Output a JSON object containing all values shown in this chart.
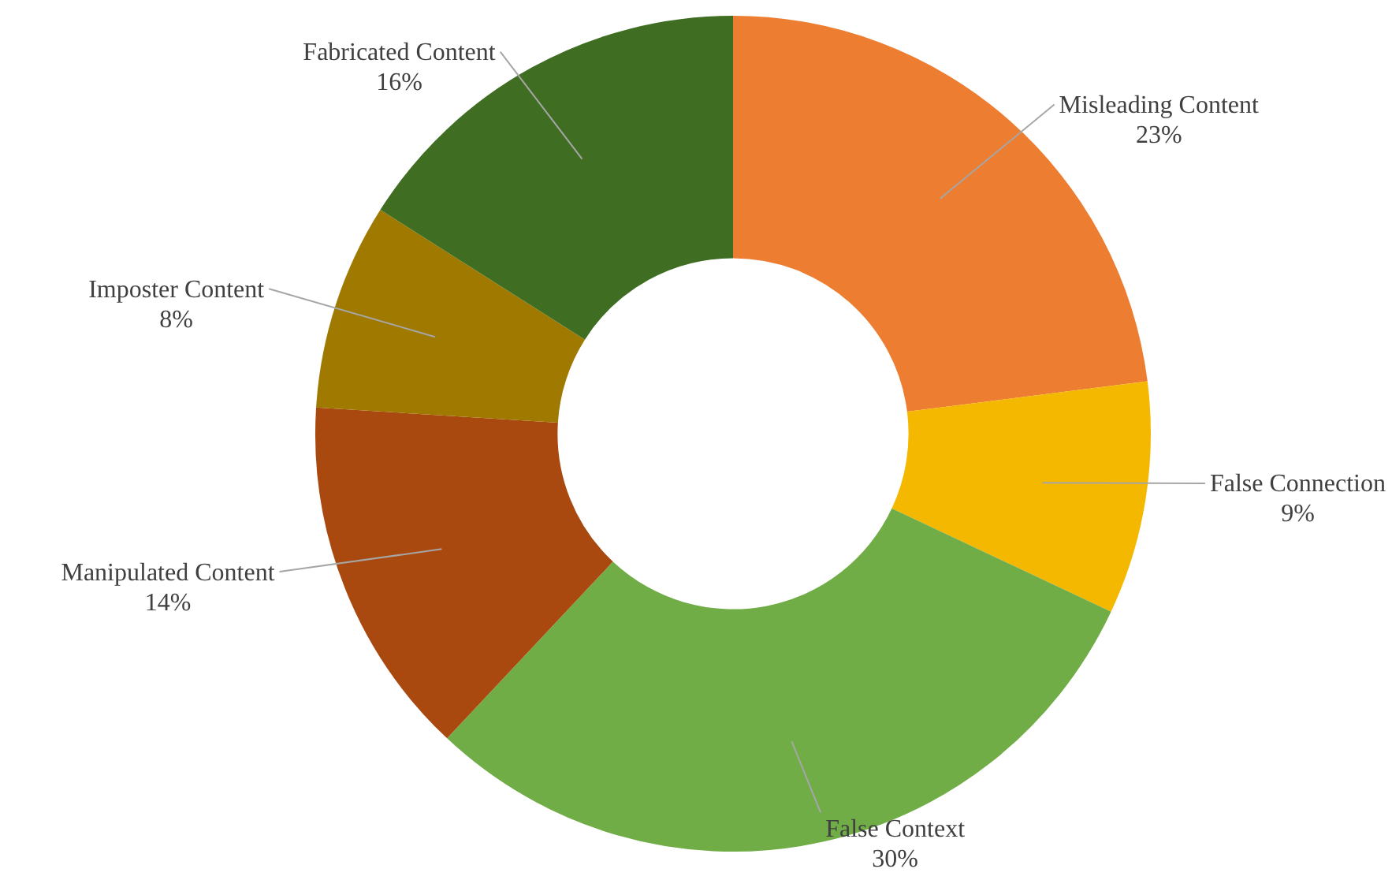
{
  "chart_data": {
    "type": "donut",
    "categories": [
      "Misleading Content",
      "False Connection",
      "False Context",
      "Manipulated Content",
      "Imposter Content",
      "Fabricated Content"
    ],
    "values": [
      23,
      9,
      30,
      14,
      8,
      16
    ],
    "colors": [
      "#ed7d31",
      "#f5b800",
      "#70ad47",
      "#a9490f",
      "#a07a00",
      "#3f6e22"
    ],
    "value_labels": [
      "23%",
      "9%",
      "30%",
      "14%",
      "8%",
      "16%"
    ],
    "legend": false
  }
}
